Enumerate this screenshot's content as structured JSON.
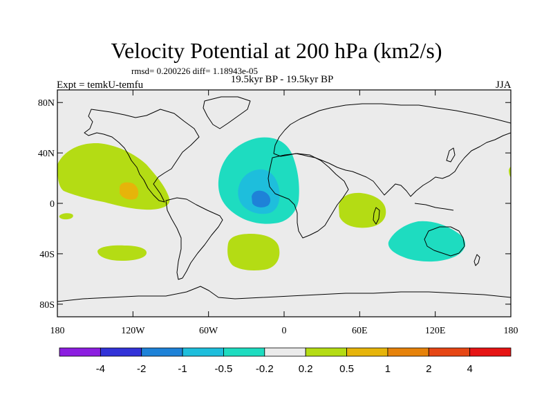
{
  "chart_data": {
    "type": "heatmap",
    "title": "Velocity Potential at 200 hPa (km2/s)",
    "stats_text": "rmsd= 0.200226  diff= 1.18943e-05",
    "left_label": "Expt = temkU-temfu",
    "center_label": "19.5kyr BP - 19.5kyr BP",
    "right_label": "JJA",
    "x_tick_labels": [
      "180",
      "120W",
      "60W",
      "0",
      "60E",
      "120E",
      "180"
    ],
    "y_tick_labels": [
      "80N",
      "40N",
      "0",
      "40S",
      "80S"
    ],
    "lon_range": [
      -180,
      180
    ],
    "lat_range": [
      -90,
      90
    ],
    "colorbar": {
      "labels": [
        "-4",
        "-2",
        "-1",
        "-0.5",
        "-0.2",
        "0.2",
        "0.5",
        "1",
        "2",
        "4"
      ],
      "colors": [
        "#8c1ee0",
        "#3232d8",
        "#1e82d8",
        "#1ebedc",
        "#1edcc0",
        "#ebebeb",
        "#b4dc14",
        "#e6b40a",
        "#e6820a",
        "#e64614",
        "#e61414"
      ]
    },
    "regions": [
      {
        "name": "north-pacific-positive",
        "level": "0.2 to 0.5",
        "color": "#b4dc14"
      },
      {
        "name": "north-pacific-core",
        "level": "0.5 to 1",
        "color": "#e6b40a"
      },
      {
        "name": "atlantic-africa-negative",
        "level": "-0.5 to -0.2",
        "color": "#1edcc0"
      },
      {
        "name": "equatorial-atlantic-negative",
        "level": "-1 to -0.5",
        "color": "#1ebedc"
      },
      {
        "name": "equatorial-atlantic-core",
        "level": "-2 to -1",
        "color": "#1e82d8"
      },
      {
        "name": "south-atlantic-positive",
        "level": "0.2 to 0.5",
        "color": "#b4dc14"
      },
      {
        "name": "indian-ocean-positive",
        "level": "0.2 to 0.5",
        "color": "#b4dc14"
      },
      {
        "name": "australia-negative",
        "level": "-0.5 to -0.2",
        "color": "#1edcc0"
      },
      {
        "name": "south-pacific-positive",
        "level": "0.2 to 0.5",
        "color": "#b4dc14"
      },
      {
        "name": "tropical-pacific-positive",
        "level": "0.2 to 0.5",
        "color": "#b4dc14"
      },
      {
        "name": "western-pacific-positive",
        "level": "0.2 to 0.5",
        "color": "#b4dc14"
      }
    ]
  }
}
